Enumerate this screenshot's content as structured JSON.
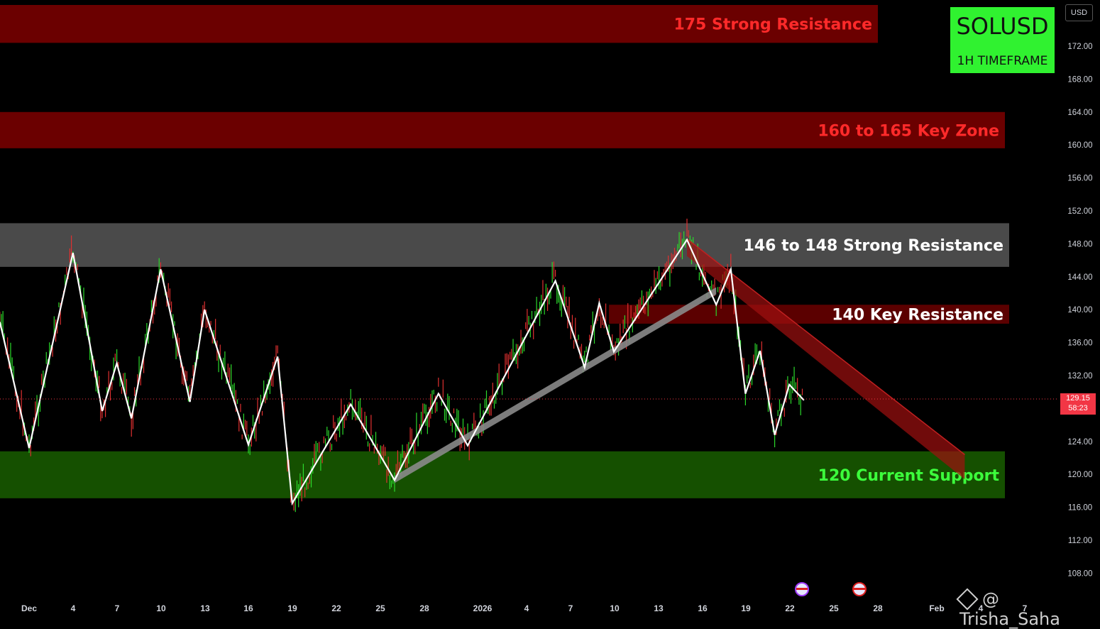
{
  "chart_data": {
    "type": "line",
    "symbol": "SOLUSD",
    "timeframe": "1H TIMEFRAME",
    "currency": "USD",
    "last_price": "129.15",
    "countdown": "58:23",
    "watermark": "@ Trisha_Saha",
    "y_ticks": [
      "172.00",
      "168.00",
      "164.00",
      "160.00",
      "156.00",
      "152.00",
      "148.00",
      "144.00",
      "140.00",
      "136.00",
      "132.00",
      "128.00",
      "124.00",
      "120.00",
      "116.00",
      "112.00",
      "108.00"
    ],
    "x_ticks": [
      "Dec",
      "4",
      "7",
      "10",
      "13",
      "16",
      "19",
      "22",
      "25",
      "28",
      "2026",
      "4",
      "7",
      "10",
      "13",
      "16",
      "19",
      "22",
      "25",
      "28",
      "Feb",
      "4",
      "7"
    ],
    "ylim": [
      105.3,
      174.1
    ],
    "zones": [
      {
        "label": "175 Strong Resistance",
        "low": 172.4,
        "high": 177.0,
        "fill": "#6b0000",
        "text_color": "#ff2a2a"
      },
      {
        "label": "160 to 165 Key Zone",
        "low": 159.6,
        "high": 164.0,
        "fill": "#6b0000",
        "text_color": "#ff2a2a"
      },
      {
        "label": "146 to 148 Strong Resistance",
        "low": 145.2,
        "high": 150.5,
        "fill": "#4a4a4a",
        "text_color": "#ffffff"
      },
      {
        "label": "140 Key Resistance",
        "low": 138.3,
        "high": 140.6,
        "fill": "#6b0000",
        "text_color": "#ffffff"
      },
      {
        "label": "120 Current Support",
        "low": 117.1,
        "high": 122.8,
        "fill": "#155000",
        "text_color": "#3cff3c"
      }
    ],
    "zigzag": [
      {
        "x": "Nov 29",
        "y": 138.5
      },
      {
        "x": "Dec 1",
        "y": 123.2
      },
      {
        "x": "Dec 4",
        "y": 146.9
      },
      {
        "x": "Dec 6",
        "y": 127.7
      },
      {
        "x": "Dec 7",
        "y": 133.5
      },
      {
        "x": "Dec 8",
        "y": 126.8
      },
      {
        "x": "Dec 10",
        "y": 144.9
      },
      {
        "x": "Dec 12",
        "y": 128.8
      },
      {
        "x": "Dec 13",
        "y": 140.0
      },
      {
        "x": "Dec 16",
        "y": 123.6
      },
      {
        "x": "Dec 18",
        "y": 134.3
      },
      {
        "x": "Dec 19",
        "y": 116.5
      },
      {
        "x": "Dec 23",
        "y": 128.5
      },
      {
        "x": "Dec 26",
        "y": 119.3
      },
      {
        "x": "Dec 29",
        "y": 129.8
      },
      {
        "x": "Dec 31",
        "y": 123.5
      },
      {
        "x": "Jan 6",
        "y": 143.5
      },
      {
        "x": "Jan 8",
        "y": 133.0
      },
      {
        "x": "Jan 9",
        "y": 140.8
      },
      {
        "x": "Jan 10",
        "y": 134.9
      },
      {
        "x": "Jan 15",
        "y": 148.5
      },
      {
        "x": "Jan 17",
        "y": 140.6
      },
      {
        "x": "Jan 18",
        "y": 144.9
      },
      {
        "x": "Jan 19",
        "y": 129.8
      },
      {
        "x": "Jan 20",
        "y": 135.0
      },
      {
        "x": "Jan 21",
        "y": 124.8
      },
      {
        "x": "Jan 22",
        "y": 130.9
      },
      {
        "x": "Jan 23",
        "y": 129.0
      }
    ],
    "trendline": {
      "from": {
        "x": "Dec 26",
        "y": 119.3
      },
      "to": {
        "x": "Jan 17",
        "y": 142.2
      }
    },
    "channel": {
      "upper_from": {
        "x": "Jan 15",
        "y": 148.6
      },
      "upper_to": {
        "x": "Feb 3",
        "y": 122.4
      },
      "lower_from": {
        "x": "Jan 15",
        "y": 146.5
      },
      "lower_to": {
        "x": "Feb 3",
        "y": 119.4
      }
    }
  }
}
